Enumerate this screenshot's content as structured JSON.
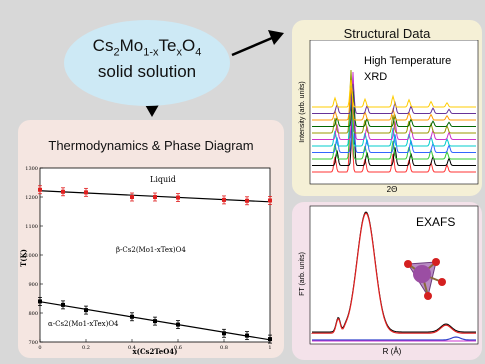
{
  "title": {
    "prefix": "Cs",
    "sub1": "2",
    "mid": "Mo",
    "sub2": "1-x",
    "te": "Te",
    "sub3": "x",
    "o": "O",
    "sub4": "4",
    "line2": "solid solution"
  },
  "panels": {
    "thermo": {
      "title": "Thermodynamics & Phase Diagram"
    },
    "structural": {
      "title": "Structural Data",
      "annotation_line1": "High Temperature",
      "annotation_line2": "XRD",
      "ylabel": "Intensity (arb. units)",
      "xlabel": "2Θ"
    },
    "exafs": {
      "title": "EXAFS",
      "ylabel": "FT (arb. units)",
      "xlabel": "R (Å)"
    }
  },
  "colors": {
    "ellipse": "#cde9f5",
    "thermo_bg": "#f5e6e1",
    "struct_bg": "#f5f0d6",
    "exafs_bg": "#f4e2ea",
    "fit_red": "#e02020",
    "molecule_purple": "#9b4ea3",
    "oxygen_red": "#d42020"
  },
  "chart_data": {
    "type": "scatter",
    "title": "",
    "xlabel": "x(Cs2TeO4)",
    "ylabel": "T(K)",
    "xlim": [
      0,
      1
    ],
    "ylim": [
      700,
      1300
    ],
    "xticks": [
      "0",
      "0.2",
      "0.4",
      "0.6",
      "0.8",
      "1"
    ],
    "yticks": [
      "700",
      "800",
      "900",
      "1000",
      "1100",
      "1200",
      "1300"
    ],
    "region_labels": [
      "Liquid",
      "β-Cs2(Mo1-xTex)O4",
      "α-Cs2(Mo1-xTex)O4"
    ],
    "series": [
      {
        "x": [
          0,
          0.1,
          0.2,
          0.4,
          0.5,
          0.6,
          0.8,
          0.9,
          1.0
        ],
        "y": [
          1225,
          1218,
          1216,
          1200,
          1200,
          1198,
          1190,
          1187,
          1188
        ],
        "color": "#e02020"
      },
      {
        "x": [
          0,
          0.1,
          0.2,
          0.4,
          0.5,
          0.6,
          0.8,
          0.9,
          1.0
        ],
        "y": [
          840,
          828,
          810,
          787,
          772,
          760,
          730,
          722,
          710
        ],
        "color": "#000000"
      }
    ]
  }
}
